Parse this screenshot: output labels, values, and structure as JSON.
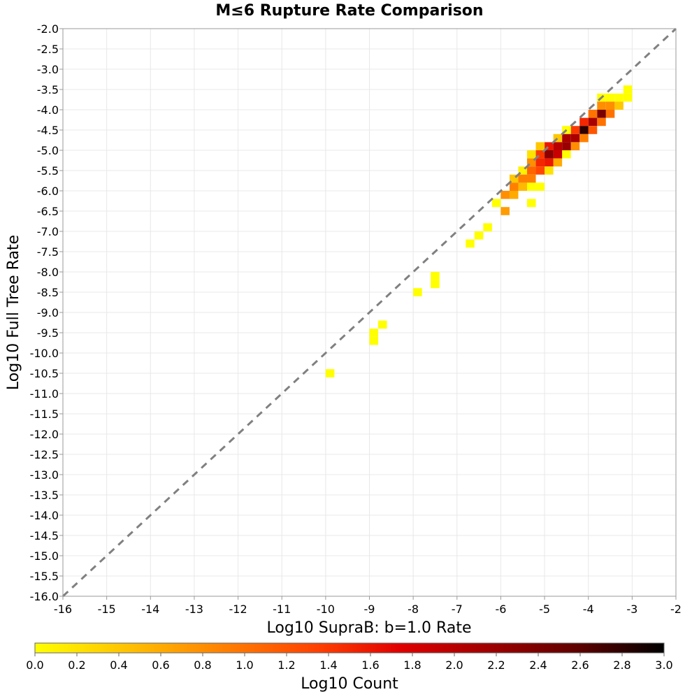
{
  "chart_data": {
    "type": "heatmap",
    "title": "M≤6 Rupture Rate Comparison",
    "xlabel": "Log10 SupraB: b=1.0 Rate",
    "ylabel": "Log10 Full Tree Rate",
    "xlim": [
      -16,
      -2
    ],
    "ylim": [
      -16,
      -2
    ],
    "x_ticks": [
      "-16",
      "-15",
      "-14",
      "-13",
      "-12",
      "-11",
      "-10",
      "-9",
      "-8",
      "-7",
      "-6",
      "-5",
      "-4",
      "-3",
      "-2"
    ],
    "y_ticks": [
      "-2.0",
      "-2.5",
      "-3.0",
      "-3.5",
      "-4.0",
      "-4.5",
      "-5.0",
      "-5.5",
      "-6.0",
      "-6.5",
      "-7.0",
      "-7.5",
      "-8.0",
      "-8.5",
      "-9.0",
      "-9.5",
      "-10.0",
      "-10.5",
      "-11.0",
      "-11.5",
      "-12.0",
      "-12.5",
      "-13.0",
      "-13.5",
      "-14.0",
      "-14.5",
      "-15.0",
      "-15.5",
      "-16.0"
    ],
    "bin_size": 0.2,
    "grid": true,
    "reference_line": "y = x (dashed gray)",
    "colorbar": {
      "label": "Log10 Count",
      "range": [
        0.0,
        3.0
      ],
      "ticks": [
        "0.0",
        "0.2",
        "0.4",
        "0.6",
        "0.8",
        "1.0",
        "1.2",
        "1.4",
        "1.6",
        "1.8",
        "2.0",
        "2.2",
        "2.4",
        "2.6",
        "2.8",
        "3.0"
      ],
      "colormap": [
        "#ffff00",
        "#ffc000",
        "#ff8000",
        "#ff4000",
        "#e00000",
        "#a00000",
        "#600000",
        "#000000"
      ]
    },
    "cells": [
      {
        "x": -3.1,
        "y": -3.5,
        "v": 0.0
      },
      {
        "x": -3.1,
        "y": -3.7,
        "v": 0.0
      },
      {
        "x": -3.3,
        "y": -3.7,
        "v": 0.0
      },
      {
        "x": -3.5,
        "y": -3.7,
        "v": 0.0
      },
      {
        "x": -3.7,
        "y": -3.7,
        "v": 0.0
      },
      {
        "x": -3.3,
        "y": -3.9,
        "v": 0.4
      },
      {
        "x": -3.5,
        "y": -3.9,
        "v": 0.8
      },
      {
        "x": -3.7,
        "y": -3.9,
        "v": 0.8
      },
      {
        "x": -3.5,
        "y": -4.1,
        "v": 1.0
      },
      {
        "x": -3.7,
        "y": -4.1,
        "v": 2.4
      },
      {
        "x": -3.9,
        "y": -4.1,
        "v": 1.0
      },
      {
        "x": -3.7,
        "y": -4.3,
        "v": 1.0
      },
      {
        "x": -3.9,
        "y": -4.3,
        "v": 2.1
      },
      {
        "x": -4.1,
        "y": -4.3,
        "v": 1.5
      },
      {
        "x": -3.9,
        "y": -4.5,
        "v": 1.2
      },
      {
        "x": -4.1,
        "y": -4.5,
        "v": 2.8
      },
      {
        "x": -4.3,
        "y": -4.5,
        "v": 1.4
      },
      {
        "x": -4.5,
        "y": -4.5,
        "v": 0.0
      },
      {
        "x": -4.1,
        "y": -4.7,
        "v": 0.9
      },
      {
        "x": -4.3,
        "y": -4.7,
        "v": 2.1
      },
      {
        "x": -4.5,
        "y": -4.7,
        "v": 2.1
      },
      {
        "x": -4.7,
        "y": -4.7,
        "v": 0.4
      },
      {
        "x": -4.3,
        "y": -4.9,
        "v": 0.8
      },
      {
        "x": -4.5,
        "y": -4.9,
        "v": 2.2
      },
      {
        "x": -4.7,
        "y": -4.9,
        "v": 2.0
      },
      {
        "x": -4.9,
        "y": -4.9,
        "v": 1.6
      },
      {
        "x": -5.1,
        "y": -4.9,
        "v": 0.4
      },
      {
        "x": -4.5,
        "y": -5.1,
        "v": 0.0
      },
      {
        "x": -4.7,
        "y": -5.1,
        "v": 1.9
      },
      {
        "x": -4.9,
        "y": -5.1,
        "v": 2.3
      },
      {
        "x": -5.1,
        "y": -5.1,
        "v": 1.4
      },
      {
        "x": -5.3,
        "y": -5.1,
        "v": 0.2
      },
      {
        "x": -4.7,
        "y": -5.3,
        "v": 0.6
      },
      {
        "x": -4.9,
        "y": -5.3,
        "v": 1.6
      },
      {
        "x": -5.1,
        "y": -5.3,
        "v": 1.5
      },
      {
        "x": -5.3,
        "y": -5.3,
        "v": 0.8
      },
      {
        "x": -4.9,
        "y": -5.5,
        "v": 0.2
      },
      {
        "x": -5.1,
        "y": -5.5,
        "v": 1.3
      },
      {
        "x": -5.3,
        "y": -5.5,
        "v": 1.1
      },
      {
        "x": -5.5,
        "y": -5.5,
        "v": 0.1
      },
      {
        "x": -5.3,
        "y": -5.7,
        "v": 0.9
      },
      {
        "x": -5.5,
        "y": -5.7,
        "v": 0.9
      },
      {
        "x": -5.7,
        "y": -5.7,
        "v": 0.4
      },
      {
        "x": -5.1,
        "y": -5.9,
        "v": 0.0
      },
      {
        "x": -5.3,
        "y": -5.9,
        "v": 0.0
      },
      {
        "x": -5.5,
        "y": -5.9,
        "v": 0.5
      },
      {
        "x": -5.7,
        "y": -5.9,
        "v": 0.9
      },
      {
        "x": -5.7,
        "y": -6.1,
        "v": 0.6
      },
      {
        "x": -5.9,
        "y": -6.1,
        "v": 0.8
      },
      {
        "x": -6.1,
        "y": -6.3,
        "v": 0.0
      },
      {
        "x": -5.3,
        "y": -6.3,
        "v": 0.0
      },
      {
        "x": -5.9,
        "y": -6.5,
        "v": 0.7
      },
      {
        "x": -6.3,
        "y": -6.9,
        "v": 0.0
      },
      {
        "x": -6.5,
        "y": -7.1,
        "v": 0.0
      },
      {
        "x": -6.7,
        "y": -7.3,
        "v": 0.0
      },
      {
        "x": -7.5,
        "y": -8.1,
        "v": 0.0
      },
      {
        "x": -7.5,
        "y": -8.3,
        "v": 0.0
      },
      {
        "x": -7.9,
        "y": -8.5,
        "v": 0.0
      },
      {
        "x": -8.7,
        "y": -9.3,
        "v": 0.0
      },
      {
        "x": -8.9,
        "y": -9.5,
        "v": 0.0
      },
      {
        "x": -8.9,
        "y": -9.7,
        "v": 0.0
      },
      {
        "x": -9.9,
        "y": -10.5,
        "v": 0.0
      }
    ]
  }
}
